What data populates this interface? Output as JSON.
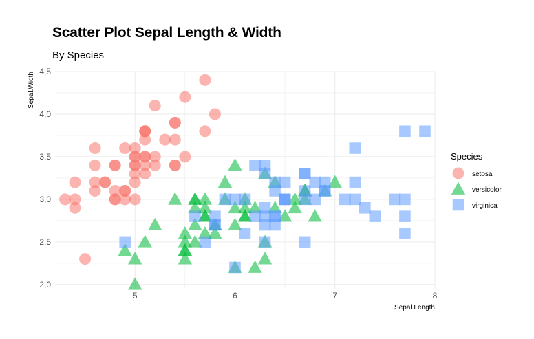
{
  "title": "Scatter Plot Sepal Length & Width",
  "subtitle": "By Species",
  "chart_data": {
    "type": "scatter",
    "xlabel": "Sepal.Length",
    "ylabel": "Sepal.Width",
    "xlim": [
      4.2,
      8.0
    ],
    "ylim": [
      1.95,
      4.5
    ],
    "x_ticks": [
      5,
      6,
      7,
      8
    ],
    "x_tick_labels": [
      "5",
      "6",
      "7",
      "8"
    ],
    "y_ticks": [
      2.0,
      2.5,
      3.0,
      3.5,
      4.0,
      4.5
    ],
    "y_tick_labels": [
      "2,0",
      "2,5",
      "3,0",
      "3,5",
      "4,0",
      "4,5"
    ],
    "grid": true,
    "legend": {
      "title": "Species",
      "position": "right"
    },
    "series": [
      {
        "name": "setosa",
        "shape": "circle",
        "color": "#F8766D",
        "x": [
          5.1,
          4.9,
          4.7,
          4.6,
          5.0,
          5.4,
          4.6,
          5.0,
          4.4,
          4.9,
          5.4,
          4.8,
          4.8,
          4.3,
          5.8,
          5.7,
          5.4,
          5.1,
          5.7,
          5.1,
          5.4,
          5.1,
          4.6,
          5.1,
          4.8,
          5.0,
          5.0,
          5.2,
          5.2,
          4.7,
          4.8,
          5.4,
          5.2,
          5.5,
          4.9,
          5.0,
          5.5,
          4.9,
          4.4,
          5.1,
          5.0,
          4.5,
          4.4,
          5.0,
          5.1,
          4.8,
          5.1,
          4.6,
          5.3,
          5.0
        ],
        "y": [
          3.5,
          3.0,
          3.2,
          3.1,
          3.6,
          3.9,
          3.4,
          3.4,
          2.9,
          3.1,
          3.7,
          3.4,
          3.0,
          3.0,
          4.0,
          4.4,
          3.9,
          3.5,
          3.8,
          3.8,
          3.4,
          3.7,
          3.6,
          3.3,
          3.4,
          3.0,
          3.4,
          3.5,
          3.4,
          3.2,
          3.1,
          3.4,
          4.1,
          4.2,
          3.1,
          3.2,
          3.5,
          3.6,
          3.0,
          3.4,
          3.5,
          2.3,
          3.2,
          3.5,
          3.8,
          3.0,
          3.8,
          3.2,
          3.7,
          3.3
        ]
      },
      {
        "name": "versicolor",
        "shape": "triangle",
        "color": "#00BA38",
        "x": [
          7.0,
          6.4,
          6.9,
          5.5,
          6.5,
          5.7,
          6.3,
          4.9,
          6.6,
          5.2,
          5.0,
          5.9,
          6.0,
          6.1,
          5.6,
          6.7,
          5.6,
          5.8,
          6.2,
          5.6,
          5.9,
          6.1,
          6.3,
          6.1,
          6.4,
          6.6,
          6.8,
          6.7,
          6.0,
          5.7,
          5.5,
          5.5,
          5.8,
          6.0,
          5.4,
          6.0,
          6.7,
          6.3,
          5.6,
          5.5,
          5.5,
          6.1,
          5.8,
          5.0,
          5.6,
          5.7,
          5.7,
          6.2,
          5.1,
          5.7
        ],
        "y": [
          3.2,
          3.2,
          3.1,
          2.3,
          2.8,
          2.8,
          3.3,
          2.4,
          2.9,
          2.7,
          2.0,
          3.0,
          2.2,
          2.9,
          2.9,
          3.1,
          3.0,
          2.7,
          2.2,
          2.5,
          3.2,
          2.8,
          2.5,
          2.8,
          2.9,
          3.0,
          2.8,
          3.0,
          2.9,
          2.6,
          2.4,
          2.4,
          2.7,
          2.7,
          3.0,
          3.4,
          3.1,
          2.3,
          3.0,
          2.5,
          2.6,
          3.0,
          2.6,
          2.3,
          2.7,
          3.0,
          2.9,
          2.9,
          2.5,
          2.8
        ]
      },
      {
        "name": "virginica",
        "shape": "square",
        "color": "#619CFF",
        "x": [
          6.3,
          5.8,
          7.1,
          6.3,
          6.5,
          7.6,
          4.9,
          7.3,
          6.7,
          7.2,
          6.5,
          6.4,
          6.8,
          5.7,
          5.8,
          6.4,
          6.5,
          7.7,
          7.7,
          6.0,
          6.9,
          5.6,
          7.7,
          6.3,
          6.7,
          7.2,
          6.2,
          6.1,
          6.4,
          7.2,
          7.4,
          7.9,
          6.4,
          6.3,
          6.1,
          7.7,
          6.3,
          6.4,
          6.0,
          6.9,
          6.7,
          6.9,
          5.8,
          6.8,
          6.7,
          6.7,
          6.3,
          6.5,
          6.2,
          5.9
        ],
        "y": [
          3.3,
          2.7,
          3.0,
          2.9,
          3.0,
          3.0,
          2.5,
          2.9,
          2.5,
          3.6,
          3.2,
          2.7,
          3.0,
          2.5,
          2.8,
          3.2,
          3.0,
          3.8,
          2.6,
          2.2,
          3.2,
          2.8,
          2.8,
          2.7,
          3.3,
          3.2,
          2.8,
          3.0,
          2.8,
          3.0,
          2.8,
          3.8,
          2.8,
          2.8,
          2.6,
          3.0,
          3.4,
          3.1,
          3.0,
          3.1,
          3.1,
          3.1,
          2.7,
          3.2,
          3.3,
          3.0,
          2.5,
          3.0,
          3.4,
          3.0
        ]
      }
    ]
  }
}
